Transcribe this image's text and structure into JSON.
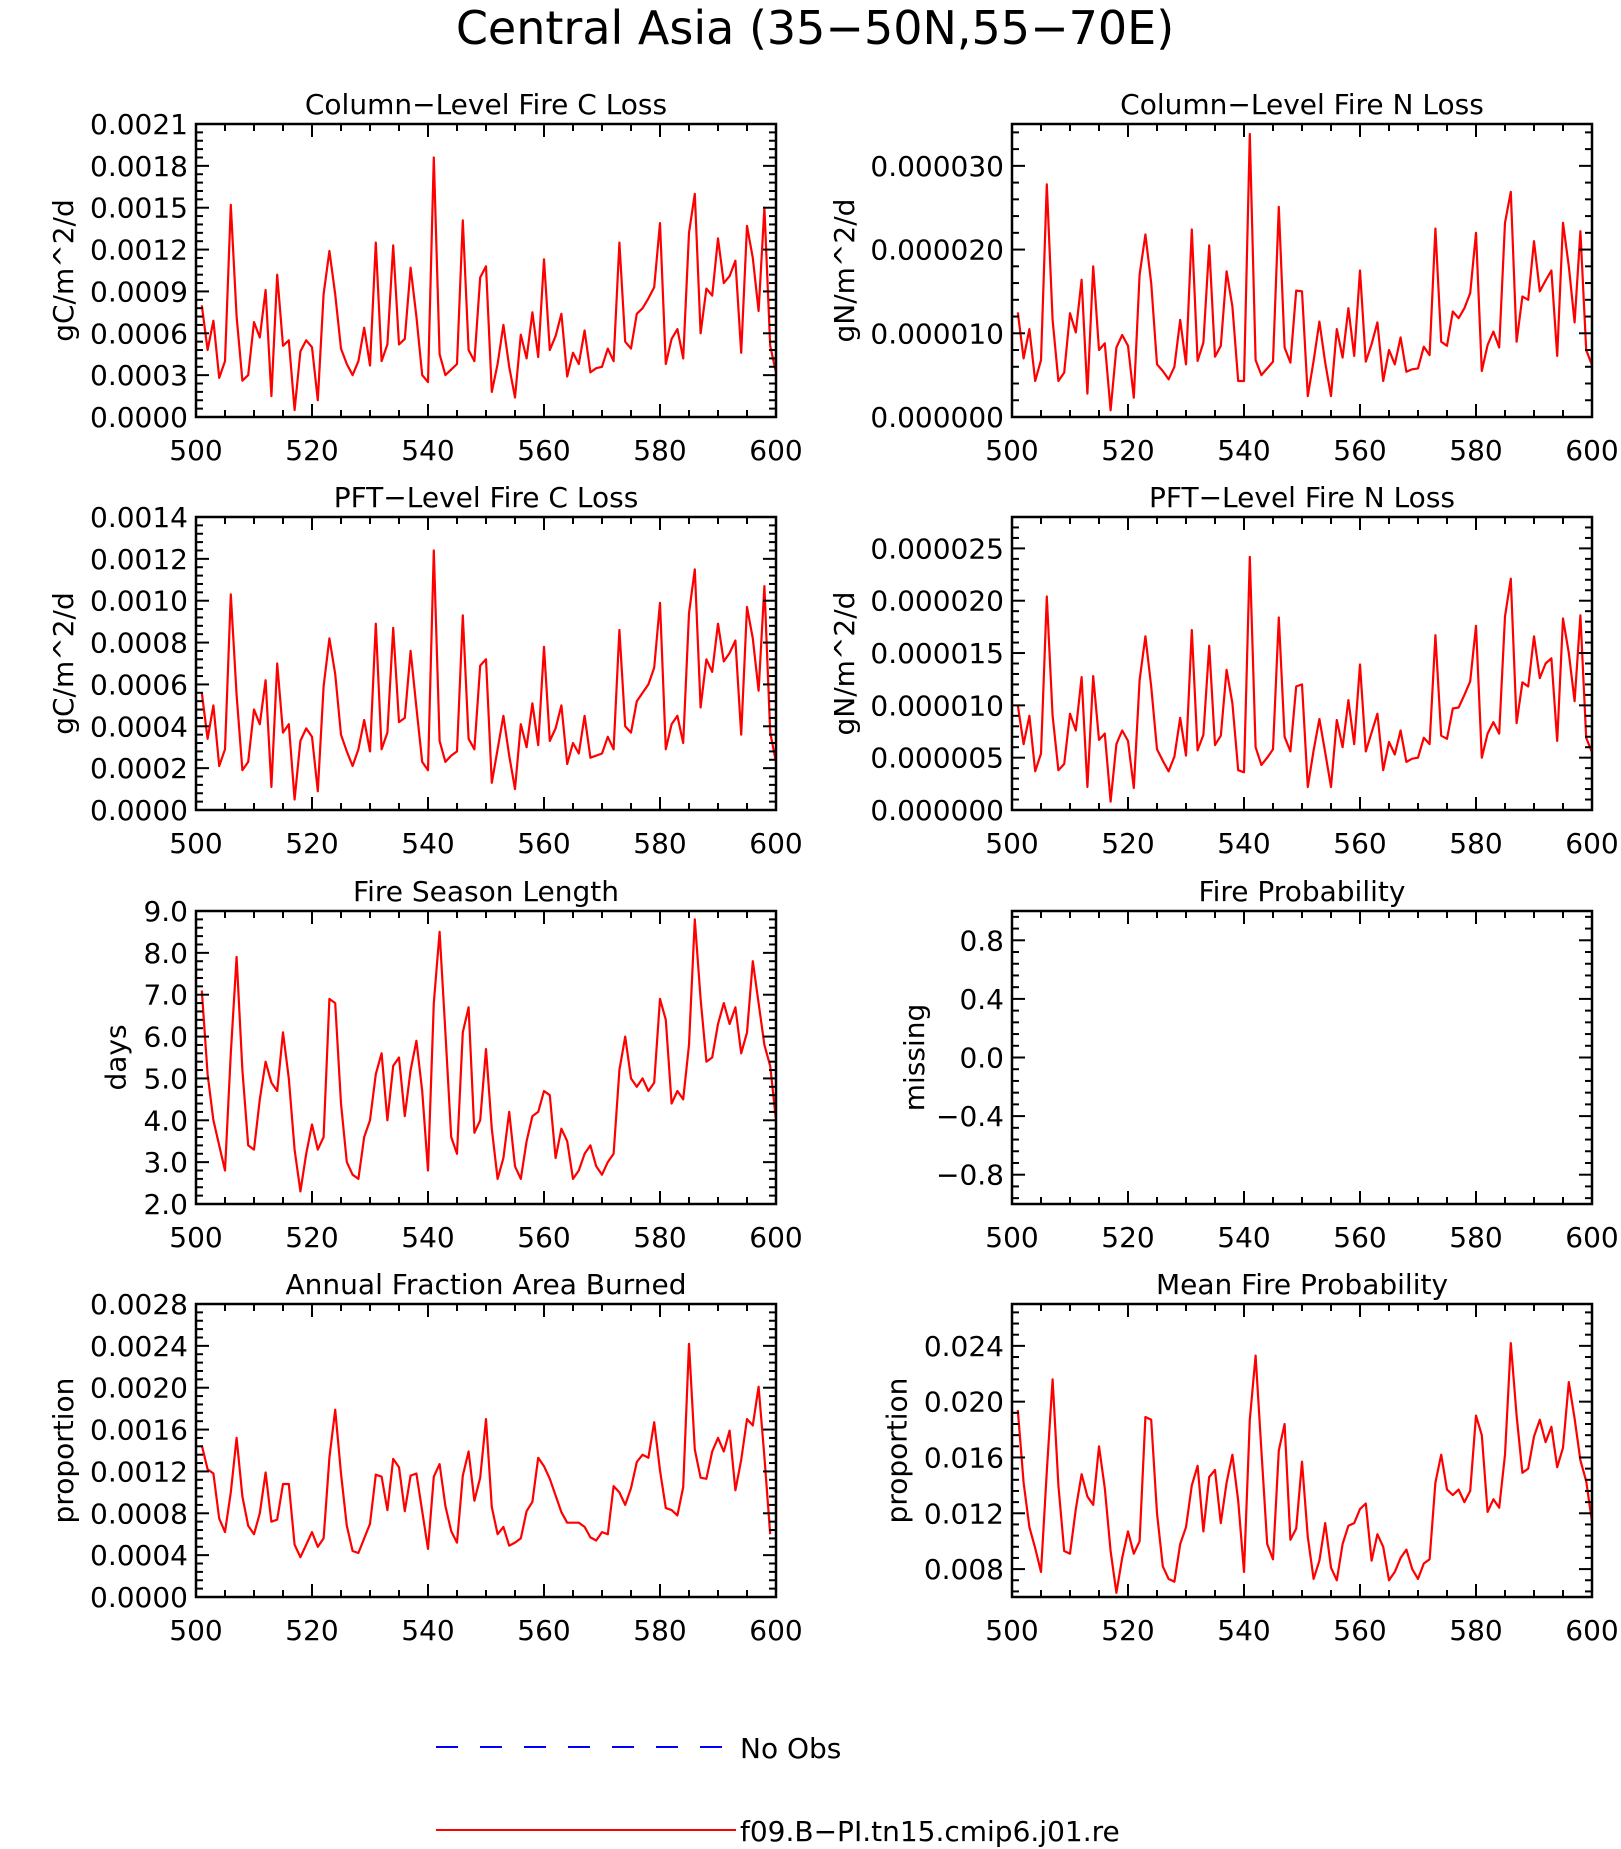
{
  "figure_title": "Central Asia (35−50N,55−70E)",
  "colors": {
    "model": "#ff0000",
    "obs": "#0000ff",
    "axis": "#000000"
  },
  "legend": {
    "entries": [
      {
        "label": "No Obs",
        "style": "dashed",
        "color": "#0000ff"
      },
      {
        "label": "f09.B−PI.tn15.cmip6.j01.re",
        "style": "solid",
        "color": "#ff0000"
      }
    ]
  },
  "chart_data": [
    {
      "type": "line",
      "title": "Column−Level Fire C Loss",
      "ylabel": "gC/m^2/d",
      "xlim": [
        500,
        600
      ],
      "ylim": [
        0,
        0.0021
      ],
      "xticks": [
        500,
        520,
        540,
        560,
        580,
        600
      ],
      "yticks": [
        0,
        0.0003,
        0.0006,
        0.0009,
        0.0012,
        0.0015,
        0.0018,
        0.0021
      ],
      "ytick_labels": [
        "0.0000",
        "0.0003",
        "0.0006",
        "0.0009",
        "0.0012",
        "0.0015",
        "0.0018",
        "0.0021"
      ],
      "x_start": 501,
      "series": [
        {
          "values": [
            0.0008,
            0.00048,
            0.00069,
            0.00028,
            0.0004,
            0.00152,
            0.00072,
            0.00026,
            0.0003,
            0.00068,
            0.00057,
            0.00091,
            0.00015,
            0.00102,
            0.00051,
            0.00055,
            5e-05,
            0.00047,
            0.00055,
            0.0005,
            0.00012,
            0.00088,
            0.00119,
            0.00088,
            0.00049,
            0.00038,
            0.0003,
            0.0004,
            0.00064,
            0.00037,
            0.00125,
            0.0004,
            0.00052,
            0.00123,
            0.00052,
            0.00056,
            0.00107,
            0.00072,
            0.0003,
            0.00025,
            0.00186,
            0.00045,
            0.0003,
            0.00034,
            0.00038,
            0.00141,
            0.00048,
            0.0004,
            0.001,
            0.00108,
            0.00018,
            0.00038,
            0.00066,
            0.00036,
            0.00014,
            0.00059,
            0.00042,
            0.00075,
            0.00043,
            0.00113,
            0.00048,
            0.00058,
            0.00074,
            0.00029,
            0.00046,
            0.00038,
            0.00062,
            0.00032,
            0.00035,
            0.00036,
            0.00049,
            0.0004,
            0.00125,
            0.00054,
            0.00049,
            0.00074,
            0.00078,
            0.00085,
            0.00093,
            0.00139,
            0.00038,
            0.00056,
            0.00063,
            0.00042,
            0.00132,
            0.0016,
            0.0006,
            0.00092,
            0.00087,
            0.00128,
            0.00096,
            0.00101,
            0.00112,
            0.00046,
            0.00137,
            0.00114,
            0.00076,
            0.0015,
            0.00051,
            0.00032
          ]
        }
      ]
    },
    {
      "type": "line",
      "title": "Column−Level Fire N Loss",
      "ylabel": "gN/m^2/d",
      "xlim": [
        500,
        600
      ],
      "ylim": [
        0,
        3.5e-05
      ],
      "xticks": [
        500,
        520,
        540,
        560,
        580,
        600
      ],
      "yticks": [
        0,
        1e-05,
        2e-05,
        3e-05
      ],
      "ytick_labels": [
        "0.000000",
        "0.000010",
        "0.000020",
        "0.000030"
      ],
      "x_start": 501,
      "series": [
        {
          "values": [
            1.25e-05,
            7e-06,
            1.05e-05,
            4.3e-06,
            6.8e-06,
            2.78e-05,
            1.16e-05,
            4.3e-06,
            5.3e-06,
            1.24e-05,
            1.01e-05,
            1.64e-05,
            2.8e-06,
            1.8e-05,
            8e-06,
            8.8e-06,
            8e-07,
            8.3e-06,
            9.8e-06,
            8.5e-06,
            2.3e-06,
            1.7e-05,
            2.18e-05,
            1.6e-05,
            6.3e-06,
            5.5e-06,
            4.5e-06,
            6e-06,
            1.16e-05,
            6.3e-06,
            2.24e-05,
            6.7e-06,
            8.9e-06,
            2.05e-05,
            7.2e-06,
            8.5e-06,
            1.74e-05,
            1.32e-05,
            4.3e-06,
            4.3e-06,
            3.38e-05,
            6.8e-06,
            5e-06,
            5.8e-06,
            6.6e-06,
            2.51e-05,
            8.3e-06,
            6.5e-06,
            1.51e-05,
            1.5e-05,
            2.5e-06,
            6.7e-06,
            1.14e-05,
            6.5e-06,
            2.5e-06,
            1.05e-05,
            7.1e-06,
            1.3e-05,
            7.3e-06,
            1.75e-05,
            6.6e-06,
            8.7e-06,
            1.13e-05,
            4.3e-06,
            8e-06,
            6.3e-06,
            9.5e-06,
            5.4e-06,
            5.7e-06,
            5.8e-06,
            8.4e-06,
            7.4e-06,
            2.25e-05,
            9e-06,
            8.5e-06,
            1.26e-05,
            1.18e-05,
            1.3e-05,
            1.48e-05,
            2.2e-05,
            5.5e-06,
            8.6e-06,
            1.02e-05,
            8.3e-06,
            2.32e-05,
            2.69e-05,
            9e-06,
            1.44e-05,
            1.4e-05,
            2.1e-05,
            1.5e-05,
            1.63e-05,
            1.75e-05,
            7.3e-06,
            2.32e-05,
            1.8e-05,
            1.13e-05,
            2.22e-05,
            8e-06,
            6.2e-06
          ]
        }
      ]
    },
    {
      "type": "line",
      "title": "PFT−Level Fire C Loss",
      "ylabel": "gC/m^2/d",
      "xlim": [
        500,
        600
      ],
      "ylim": [
        0,
        0.0014
      ],
      "xticks": [
        500,
        520,
        540,
        560,
        580,
        600
      ],
      "yticks": [
        0,
        0.0002,
        0.0004,
        0.0006,
        0.0008,
        0.001,
        0.0012,
        0.0014
      ],
      "ytick_labels": [
        "0.0000",
        "0.0002",
        "0.0004",
        "0.0006",
        "0.0008",
        "0.0010",
        "0.0012",
        "0.0014"
      ],
      "x_start": 501,
      "series": [
        {
          "values": [
            0.00056,
            0.00034,
            0.0005,
            0.00021,
            0.00029,
            0.00103,
            0.00055,
            0.00019,
            0.00023,
            0.00048,
            0.00041,
            0.00062,
            0.00011,
            0.0007,
            0.00037,
            0.00041,
            5e-05,
            0.00033,
            0.00039,
            0.00035,
            9e-05,
            0.00059,
            0.00082,
            0.00065,
            0.00036,
            0.00028,
            0.00021,
            0.00029,
            0.00043,
            0.00028,
            0.00089,
            0.00029,
            0.00037,
            0.00087,
            0.00042,
            0.00044,
            0.00076,
            0.00049,
            0.00023,
            0.00019,
            0.00124,
            0.00033,
            0.00023,
            0.00026,
            0.00028,
            0.00093,
            0.00034,
            0.00029,
            0.00069,
            0.00072,
            0.00013,
            0.00029,
            0.00045,
            0.00026,
            0.0001,
            0.00041,
            0.0003,
            0.00051,
            0.00031,
            0.00078,
            0.00033,
            0.00039,
            0.0005,
            0.00022,
            0.00032,
            0.00027,
            0.00045,
            0.00025,
            0.00026,
            0.00027,
            0.00035,
            0.00029,
            0.00086,
            0.0004,
            0.00037,
            0.00052,
            0.00056,
            0.0006,
            0.00068,
            0.00099,
            0.00029,
            0.00041,
            0.00045,
            0.00032,
            0.00094,
            0.00115,
            0.00049,
            0.00072,
            0.00066,
            0.00089,
            0.00071,
            0.00075,
            0.00081,
            0.00036,
            0.00097,
            0.00082,
            0.00057,
            0.00107,
            0.00037,
            0.00023
          ]
        }
      ]
    },
    {
      "type": "line",
      "title": "PFT−Level Fire N Loss",
      "ylabel": "gN/m^2/d",
      "xlim": [
        500,
        600
      ],
      "ylim": [
        0,
        2.8e-05
      ],
      "xticks": [
        500,
        520,
        540,
        560,
        580,
        600
      ],
      "yticks": [
        0,
        5e-06,
        1e-05,
        1.5e-05,
        2e-05,
        2.5e-05
      ],
      "ytick_labels": [
        "0.000000",
        "0.000005",
        "0.000010",
        "0.000015",
        "0.000020",
        "0.000025"
      ],
      "x_start": 501,
      "series": [
        {
          "values": [
            1e-05,
            6.3e-06,
            9e-06,
            3.7e-06,
            5.4e-06,
            2.04e-05,
            9e-06,
            3.8e-06,
            4.4e-06,
            9.2e-06,
            7.6e-06,
            1.27e-05,
            2.2e-06,
            1.28e-05,
            6.7e-06,
            7.3e-06,
            8e-07,
            6.3e-06,
            7.6e-06,
            6.6e-06,
            2.1e-06,
            1.24e-05,
            1.66e-05,
            1.18e-05,
            5.8e-06,
            4.7e-06,
            3.7e-06,
            5.1e-06,
            8.8e-06,
            5.2e-06,
            1.72e-05,
            5.7e-06,
            7.2e-06,
            1.57e-05,
            6.2e-06,
            7.1e-06,
            1.34e-05,
            1.02e-05,
            3.8e-06,
            3.6e-06,
            2.42e-05,
            6e-06,
            4.3e-06,
            5e-06,
            5.8e-06,
            1.84e-05,
            7e-06,
            5.6e-06,
            1.18e-05,
            1.2e-05,
            2.2e-06,
            5.7e-06,
            8.7e-06,
            5.5e-06,
            2.2e-06,
            8.6e-06,
            6e-06,
            1.05e-05,
            6.3e-06,
            1.39e-05,
            5.6e-06,
            7.4e-06,
            9.2e-06,
            3.8e-06,
            6.5e-06,
            5.3e-06,
            7.6e-06,
            4.6e-06,
            4.9e-06,
            5e-06,
            6.9e-06,
            6.3e-06,
            1.67e-05,
            7.1e-06,
            6.8e-06,
            9.7e-06,
            9.8e-06,
            1.1e-05,
            1.23e-05,
            1.76e-05,
            5e-06,
            7.3e-06,
            8.4e-06,
            7.3e-06,
            1.85e-05,
            2.21e-05,
            8.3e-06,
            1.22e-05,
            1.18e-05,
            1.66e-05,
            1.26e-05,
            1.4e-05,
            1.45e-05,
            6.6e-06,
            1.83e-05,
            1.5e-05,
            1.04e-05,
            1.86e-05,
            6.9e-06,
            5.5e-06
          ]
        }
      ]
    },
    {
      "type": "line",
      "title": "Fire Season Length",
      "ylabel": "days",
      "xlim": [
        500,
        600
      ],
      "ylim": [
        2,
        9
      ],
      "xticks": [
        500,
        520,
        540,
        560,
        580,
        600
      ],
      "yticks": [
        2,
        3,
        4,
        5,
        6,
        7,
        8,
        9
      ],
      "ytick_labels": [
        "2.0",
        "3.0",
        "4.0",
        "5.0",
        "6.0",
        "7.0",
        "8.0",
        "9.0"
      ],
      "x_start": 501,
      "series": [
        {
          "values": [
            7.1,
            5.1,
            4.0,
            3.4,
            2.8,
            5.6,
            7.9,
            5.2,
            3.4,
            3.3,
            4.5,
            5.4,
            4.9,
            4.7,
            6.1,
            5.0,
            3.3,
            2.3,
            3.2,
            3.9,
            3.3,
            3.6,
            6.9,
            6.8,
            4.4,
            3.0,
            2.7,
            2.6,
            3.6,
            4.0,
            5.1,
            5.6,
            4.0,
            5.3,
            5.5,
            4.1,
            5.2,
            5.9,
            4.7,
            2.8,
            6.8,
            8.5,
            6.1,
            3.6,
            3.2,
            6.1,
            6.7,
            3.7,
            4.0,
            5.7,
            3.8,
            2.6,
            3.1,
            4.2,
            2.9,
            2.6,
            3.5,
            4.1,
            4.2,
            4.7,
            4.6,
            3.1,
            3.8,
            3.5,
            2.6,
            2.8,
            3.2,
            3.4,
            2.9,
            2.7,
            3.0,
            3.2,
            5.2,
            6.0,
            5.0,
            4.8,
            5.0,
            4.7,
            4.9,
            6.9,
            6.4,
            4.4,
            4.7,
            4.5,
            5.8,
            8.8,
            6.9,
            5.4,
            5.5,
            6.3,
            6.8,
            6.3,
            6.7,
            5.6,
            6.1,
            7.8,
            6.8,
            5.8,
            5.3,
            4.0
          ]
        }
      ]
    },
    {
      "type": "line",
      "title": "Fire Probability",
      "ylabel": "missing",
      "xlim": [
        500,
        600
      ],
      "ylim": [
        -1,
        1
      ],
      "xticks": [
        500,
        520,
        540,
        560,
        580,
        600
      ],
      "yticks": [
        -0.8,
        -0.4,
        0,
        0.4,
        0.8
      ],
      "ytick_labels": [
        "−0.8",
        "−0.4",
        "0.0",
        "0.4",
        "0.8"
      ],
      "x_start": 501,
      "series": []
    },
    {
      "type": "line",
      "title": "Annual Fraction Area Burned",
      "ylabel": "proportion",
      "xlim": [
        500,
        600
      ],
      "ylim": [
        0,
        0.0028
      ],
      "xticks": [
        500,
        520,
        540,
        560,
        580,
        600
      ],
      "yticks": [
        0,
        0.0004,
        0.0008,
        0.0012,
        0.0016,
        0.002,
        0.0024,
        0.0028
      ],
      "ytick_labels": [
        "0.0000",
        "0.0004",
        "0.0008",
        "0.0012",
        "0.0016",
        "0.0020",
        "0.0024",
        "0.0028"
      ],
      "x_start": 501,
      "series": [
        {
          "values": [
            0.00145,
            0.00122,
            0.00118,
            0.00075,
            0.00062,
            0.001,
            0.00152,
            0.00096,
            0.00068,
            0.0006,
            0.0008,
            0.00119,
            0.00072,
            0.00074,
            0.00108,
            0.00108,
            0.0005,
            0.00038,
            0.0005,
            0.00062,
            0.00048,
            0.00056,
            0.00133,
            0.00179,
            0.00118,
            0.00068,
            0.00044,
            0.00042,
            0.00056,
            0.0007,
            0.00117,
            0.00115,
            0.00083,
            0.00132,
            0.00124,
            0.00082,
            0.00116,
            0.00118,
            0.00082,
            0.00046,
            0.00115,
            0.00127,
            0.00087,
            0.00063,
            0.00052,
            0.00116,
            0.00139,
            0.00092,
            0.00114,
            0.0017,
            0.00086,
            0.0006,
            0.00067,
            0.00049,
            0.00052,
            0.00056,
            0.00082,
            0.00091,
            0.00133,
            0.00125,
            0.00113,
            0.00097,
            0.00081,
            0.00071,
            0.00071,
            0.00071,
            0.00067,
            0.00057,
            0.00054,
            0.00062,
            0.0006,
            0.00106,
            0.001,
            0.00088,
            0.00104,
            0.00129,
            0.00136,
            0.00133,
            0.00167,
            0.00121,
            0.00085,
            0.00083,
            0.00078,
            0.00105,
            0.00242,
            0.00141,
            0.00114,
            0.00113,
            0.00139,
            0.00152,
            0.00139,
            0.00159,
            0.00102,
            0.00131,
            0.0017,
            0.00164,
            0.00201,
            0.00134,
            0.0006
          ]
        }
      ]
    },
    {
      "type": "line",
      "title": "Mean Fire Probability",
      "ylabel": "proportion",
      "xlim": [
        500,
        600
      ],
      "ylim": [
        0.006,
        0.027
      ],
      "xticks": [
        500,
        520,
        540,
        560,
        580,
        600
      ],
      "yticks": [
        0.008,
        0.012,
        0.016,
        0.02,
        0.024
      ],
      "ytick_labels": [
        "0.008",
        "0.012",
        "0.016",
        "0.020",
        "0.024"
      ],
      "x_start": 501,
      "series": [
        {
          "values": [
            0.0194,
            0.0142,
            0.011,
            0.0095,
            0.0078,
            0.015,
            0.0216,
            0.014,
            0.0093,
            0.0091,
            0.0123,
            0.0148,
            0.0132,
            0.0126,
            0.0168,
            0.0138,
            0.0093,
            0.0063,
            0.0088,
            0.0107,
            0.0091,
            0.01,
            0.0189,
            0.0187,
            0.012,
            0.0082,
            0.0073,
            0.0071,
            0.0098,
            0.011,
            0.014,
            0.0154,
            0.0107,
            0.0146,
            0.0151,
            0.0113,
            0.0142,
            0.0162,
            0.0129,
            0.0078,
            0.0187,
            0.0233,
            0.0165,
            0.0098,
            0.0087,
            0.0165,
            0.0184,
            0.0101,
            0.0109,
            0.0157,
            0.0103,
            0.0073,
            0.0086,
            0.0113,
            0.0081,
            0.0072,
            0.0098,
            0.0111,
            0.0113,
            0.0123,
            0.0127,
            0.0086,
            0.0105,
            0.0096,
            0.0072,
            0.0078,
            0.0088,
            0.0094,
            0.008,
            0.0073,
            0.0084,
            0.0087,
            0.0142,
            0.0162,
            0.0137,
            0.0133,
            0.0137,
            0.0128,
            0.0136,
            0.019,
            0.0176,
            0.0121,
            0.013,
            0.0124,
            0.0162,
            0.0242,
            0.019,
            0.0149,
            0.0152,
            0.0175,
            0.0187,
            0.0171,
            0.0182,
            0.0153,
            0.0167,
            0.0214,
            0.0188,
            0.0158,
            0.0143,
            0.0114
          ]
        }
      ]
    }
  ]
}
